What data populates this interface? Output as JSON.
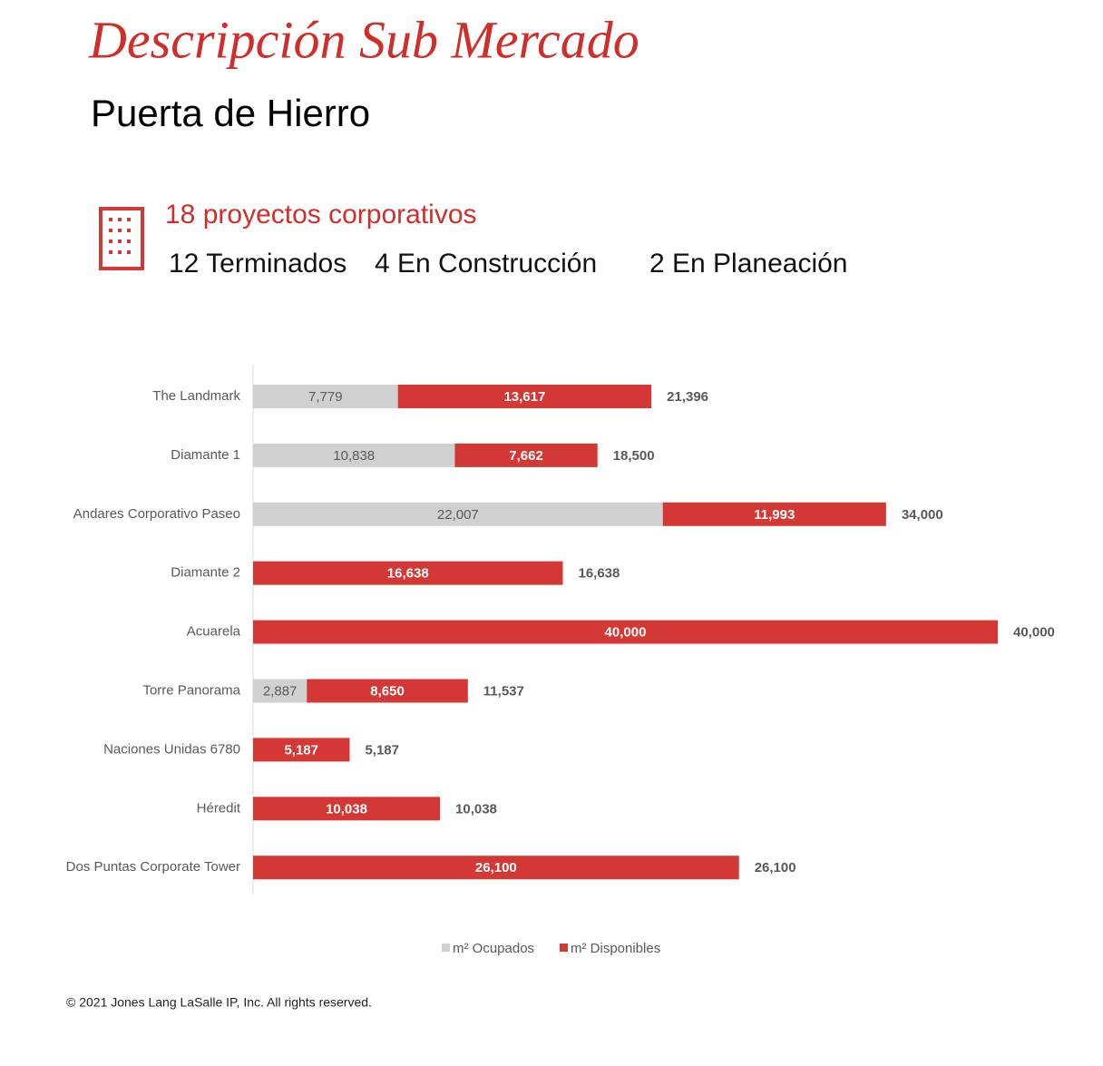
{
  "header": {
    "title": "Descripción Sub Mercado",
    "subtitle": "Puerta de Hierro"
  },
  "summary": {
    "headline": "18 proyectos corporativos",
    "stats": [
      "12 Terminados",
      "4 En Construcción",
      "2 En Planeación"
    ]
  },
  "chart_data": {
    "type": "stacked-barh",
    "categories": [
      "The Landmark",
      "Diamante 1",
      "Andares Corporativo Paseo",
      "Diamante 2",
      "Acuarela",
      "Torre Panorama",
      "Naciones Unidas 6780",
      "Héredit",
      "Dos Puntas Corporate Tower"
    ],
    "series": [
      {
        "name": "m² Ocupados",
        "color": "#d0d0d0",
        "label_color": "#595959",
        "values": [
          7779,
          10838,
          22007,
          null,
          null,
          2887,
          null,
          null,
          null
        ],
        "value_labels": [
          "7,779",
          "10,838",
          "22,007",
          null,
          null,
          "2,887",
          null,
          null,
          null
        ]
      },
      {
        "name": "m² Disponibles",
        "color": "#d43834",
        "label_color": "#ffffff",
        "values": [
          13617,
          7662,
          11993,
          16638,
          40000,
          8650,
          5187,
          10038,
          26100
        ],
        "value_labels": [
          "13,617",
          "7,662",
          "11,993",
          "16,638",
          "40,000",
          "8,650",
          "5,187",
          "10,038",
          "26,100"
        ]
      }
    ],
    "totals": {
      "values": [
        21396,
        18500,
        34000,
        16638,
        40000,
        11537,
        5187,
        10038,
        26100
      ],
      "value_labels": [
        "21,396",
        "18,500",
        "34,000",
        "16,638",
        "40,000",
        "11,537",
        "5,187",
        "10,038",
        "26,100"
      ]
    },
    "xlim": [
      0,
      40000
    ]
  },
  "footer": "© 2021 Jones Lang LaSalle IP, Inc. All rights reserved."
}
